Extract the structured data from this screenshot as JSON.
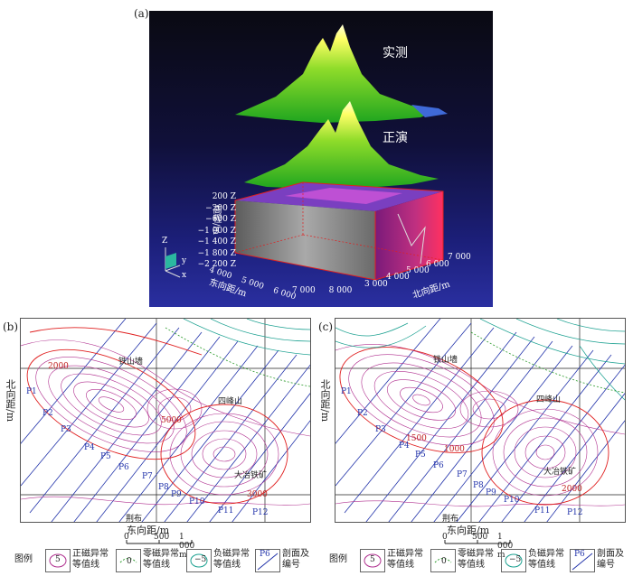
{
  "panel_a": {
    "label": "(a)",
    "surface_top": "实测",
    "surface_mid": "正演",
    "elev_axis_label": "高程/m",
    "elev_ticks": [
      "200 Z",
      "−200 Z",
      "−600 Z",
      "−1 000 Z",
      "−1 400 Z",
      "−1 800 Z",
      "−2 200 Z"
    ],
    "east_axis_label": "东向距/m",
    "east_ticks": [
      "4 000",
      "5 000",
      "6 000",
      "7 000",
      "8 000"
    ],
    "north_axis_label": "北向距/m",
    "north_ticks": [
      "3 000",
      "4 000",
      "5 000",
      "6 000",
      "7 000"
    ],
    "triad": {
      "z": "Z",
      "y": "y",
      "x": "x"
    }
  },
  "panel_b": {
    "label": "(b)",
    "y_axis_label": "北向距/m",
    "x_axis_label": "东向距/m",
    "places": [
      "铁山墙",
      "四峰山",
      "大冶铁矿",
      "荆布"
    ],
    "profiles": [
      "P1",
      "P2",
      "P3",
      "P4",
      "P5",
      "P6",
      "P7",
      "P8",
      "P9",
      "P10",
      "P11",
      "P12"
    ],
    "contour_values": [
      "2000",
      "5000",
      "3000"
    ]
  },
  "panel_c": {
    "label": "(c)",
    "y_axis_label": "北向距/m",
    "x_axis_label": "东向距/m",
    "places": [
      "铁山墙",
      "四峰山",
      "大冶铁矿",
      "荆布"
    ],
    "profiles": [
      "P1",
      "P2",
      "P3",
      "P4",
      "P5",
      "P6",
      "P7",
      "P8",
      "P9",
      "P10",
      "P11",
      "P12"
    ],
    "contour_values": [
      "1500",
      "1000",
      "2000"
    ]
  },
  "scale": {
    "ticks": [
      "0",
      "500",
      "1 000 m"
    ]
  },
  "legend": {
    "title": "图例",
    "positive": "正磁异常等值线",
    "zero": "零磁异常等值线",
    "negative": "负磁异常等值线",
    "profile": "剖面及编号",
    "pos_sample": "5",
    "zero_sample": "0",
    "neg_sample": "−5",
    "prof_sample": "P6"
  }
}
